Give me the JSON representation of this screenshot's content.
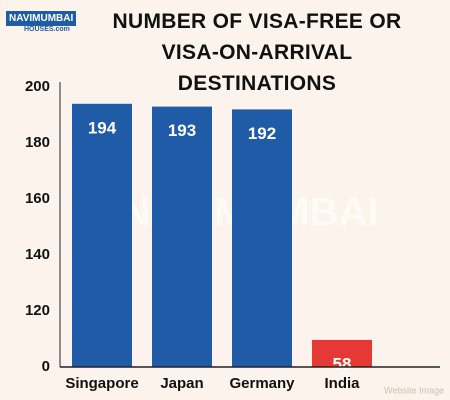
{
  "logo": {
    "name": "NAVIMUMBAI",
    "sub": "HOUSES.com"
  },
  "watermark": "NAVIMUMBAI",
  "credit": "Website Image",
  "chart_data": {
    "type": "bar",
    "title": "NUMBER OF VISA-FREE OR VISA-ON-ARRIVAL DESTINATIONS",
    "categories": [
      "Singapore",
      "Japan",
      "Germany",
      "India"
    ],
    "values": [
      194,
      193,
      192,
      58
    ],
    "colors": [
      "#1f5ba6",
      "#1f5ba6",
      "#1f5ba6",
      "#e53935"
    ],
    "ylim": [
      0,
      200
    ],
    "yticks": [
      0,
      120,
      140,
      160,
      180,
      200
    ],
    "grid": false
  }
}
